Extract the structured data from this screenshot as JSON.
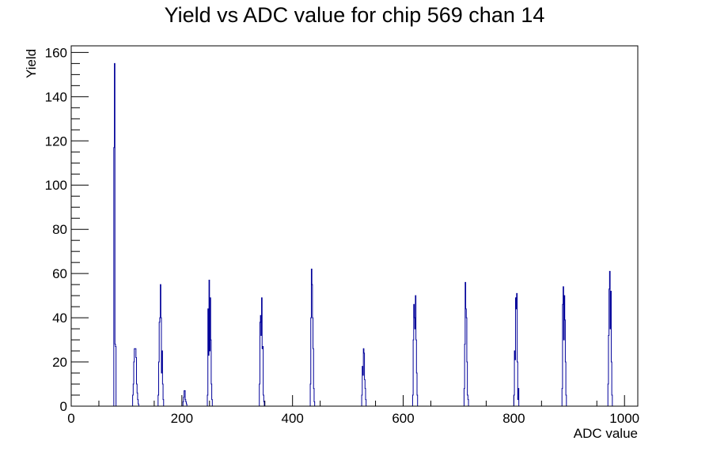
{
  "chart_data": {
    "type": "histogram",
    "title": "Yield vs ADC value for chip 569 chan 14",
    "xlabel": "ADC value",
    "ylabel": "Yield",
    "xlim": [
      0,
      1024
    ],
    "ylim": [
      0,
      163
    ],
    "bin_width": 1,
    "x_ticks": [
      0,
      200,
      400,
      600,
      800,
      1000
    ],
    "y_ticks": [
      0,
      20,
      40,
      60,
      80,
      100,
      120,
      140,
      160
    ],
    "grid": false,
    "legend": "none",
    "line_color": "#000099",
    "series": [
      {
        "points": [
          [
            77,
            117
          ],
          [
            78,
            155
          ],
          [
            79,
            28
          ],
          [
            80,
            27
          ],
          [
            111,
            5
          ],
          [
            112,
            10
          ],
          [
            113,
            20
          ],
          [
            114,
            26
          ],
          [
            115,
            26
          ],
          [
            116,
            26
          ],
          [
            117,
            22
          ],
          [
            118,
            10
          ],
          [
            119,
            6
          ],
          [
            120,
            3
          ],
          [
            121,
            1
          ],
          [
            157,
            5
          ],
          [
            158,
            20
          ],
          [
            159,
            38
          ],
          [
            160,
            40
          ],
          [
            161,
            55
          ],
          [
            162,
            40
          ],
          [
            163,
            15
          ],
          [
            164,
            25
          ],
          [
            165,
            10
          ],
          [
            166,
            3
          ],
          [
            202,
            2
          ],
          [
            203,
            4
          ],
          [
            204,
            7
          ],
          [
            205,
            7
          ],
          [
            206,
            3
          ],
          [
            207,
            2
          ],
          [
            208,
            1
          ],
          [
            246,
            5
          ],
          [
            247,
            44
          ],
          [
            248,
            23
          ],
          [
            249,
            57
          ],
          [
            250,
            25
          ],
          [
            251,
            49
          ],
          [
            252,
            30
          ],
          [
            253,
            10
          ],
          [
            254,
            3
          ],
          [
            340,
            10
          ],
          [
            341,
            38
          ],
          [
            342,
            41
          ],
          [
            343,
            32
          ],
          [
            344,
            49
          ],
          [
            345,
            26
          ],
          [
            346,
            27
          ],
          [
            347,
            5
          ],
          [
            348,
            2
          ],
          [
            432,
            10
          ],
          [
            433,
            40
          ],
          [
            434,
            62
          ],
          [
            435,
            55
          ],
          [
            436,
            40
          ],
          [
            437,
            26
          ],
          [
            438,
            8
          ],
          [
            439,
            2
          ],
          [
            525,
            5
          ],
          [
            526,
            18
          ],
          [
            527,
            14
          ],
          [
            528,
            26
          ],
          [
            529,
            24
          ],
          [
            530,
            12
          ],
          [
            531,
            8
          ],
          [
            532,
            3
          ],
          [
            617,
            5
          ],
          [
            618,
            30
          ],
          [
            619,
            46
          ],
          [
            620,
            40
          ],
          [
            621,
            35
          ],
          [
            622,
            50
          ],
          [
            623,
            30
          ],
          [
            624,
            15
          ],
          [
            625,
            5
          ],
          [
            710,
            8
          ],
          [
            711,
            28
          ],
          [
            712,
            56
          ],
          [
            713,
            44
          ],
          [
            714,
            40
          ],
          [
            715,
            20
          ],
          [
            716,
            5
          ],
          [
            717,
            3
          ],
          [
            800,
            5
          ],
          [
            801,
            25
          ],
          [
            802,
            21
          ],
          [
            803,
            49
          ],
          [
            804,
            44
          ],
          [
            805,
            51
          ],
          [
            806,
            20
          ],
          [
            807,
            3
          ],
          [
            808,
            8
          ],
          [
            887,
            8
          ],
          [
            888,
            46
          ],
          [
            889,
            54
          ],
          [
            890,
            30
          ],
          [
            891,
            50
          ],
          [
            892,
            39
          ],
          [
            893,
            20
          ],
          [
            894,
            5
          ],
          [
            970,
            10
          ],
          [
            971,
            32
          ],
          [
            972,
            53
          ],
          [
            973,
            61
          ],
          [
            974,
            35
          ],
          [
            975,
            52
          ],
          [
            976,
            20
          ],
          [
            977,
            5
          ]
        ]
      }
    ]
  }
}
